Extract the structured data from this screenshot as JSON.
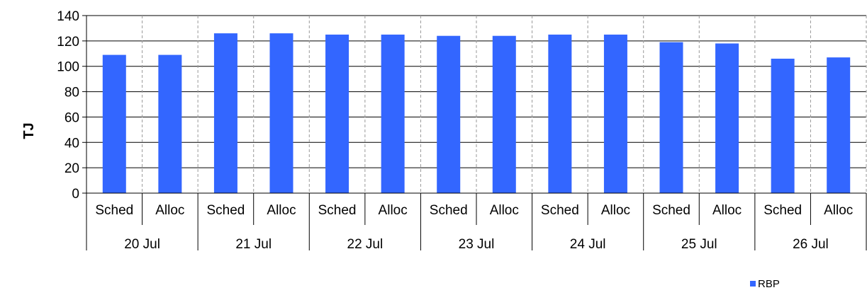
{
  "chart_data": {
    "type": "bar",
    "ylabel": "TJ",
    "ylim": [
      0,
      140
    ],
    "yticks": [
      0,
      20,
      40,
      60,
      80,
      100,
      120,
      140
    ],
    "grid": true,
    "legend_position": "bottom-right",
    "groups": [
      "20 Jul",
      "21 Jul",
      "22 Jul",
      "23 Jul",
      "24 Jul",
      "25 Jul",
      "26 Jul"
    ],
    "subcategories": [
      "Sched",
      "Alloc"
    ],
    "series": [
      {
        "name": "RBP",
        "color": "#3366FF",
        "values": [
          109,
          109,
          126,
          126,
          125,
          125,
          124,
          124,
          125,
          125,
          119,
          118,
          106,
          107
        ]
      }
    ]
  }
}
